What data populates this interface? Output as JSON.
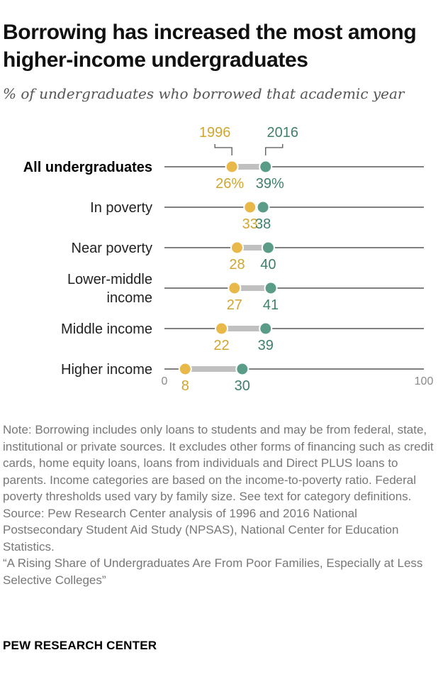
{
  "title": "Borrowing has increased the most among higher-income undergraduates",
  "subtitle": "% of undergraduates who borrowed that academic year",
  "colors": {
    "y1996": "#e8b84b",
    "y2016": "#5a9c87",
    "y1996_text": "#d0a530",
    "y2016_text": "#3f7f6d",
    "line": "#808080",
    "connector": "#c0c0c0"
  },
  "chart_data": {
    "type": "dot",
    "xlim": [
      0,
      100
    ],
    "ticks": [
      {
        "value": 0,
        "label": "0"
      },
      {
        "value": 100,
        "label": "100"
      }
    ],
    "legend": [
      {
        "year": "1996",
        "label": "1996"
      },
      {
        "year": "2016",
        "label": "2016"
      }
    ],
    "categories": [
      {
        "label": [
          "All undergraduates"
        ],
        "bold": true,
        "v1996": 26,
        "v2016": 39,
        "label1996": "26%",
        "label2016": "39%"
      },
      {
        "label": [
          "In poverty"
        ],
        "bold": false,
        "v1996": 33,
        "v2016": 38,
        "label1996": "33",
        "label2016": "38"
      },
      {
        "label": [
          "Near poverty"
        ],
        "bold": false,
        "v1996": 28,
        "v2016": 40,
        "label1996": "28",
        "label2016": "40"
      },
      {
        "label": [
          "Lower-middle",
          "income"
        ],
        "bold": false,
        "v1996": 27,
        "v2016": 41,
        "label1996": "27",
        "label2016": "41"
      },
      {
        "label": [
          "Middle income"
        ],
        "bold": false,
        "v1996": 22,
        "v2016": 39,
        "label1996": "22",
        "label2016": "39"
      },
      {
        "label": [
          "Higher income"
        ],
        "bold": false,
        "v1996": 8,
        "v2016": 30,
        "label1996": "8",
        "label2016": "30"
      }
    ]
  },
  "notes": [
    "Note: Borrowing includes only loans to students and may be from federal, state, institutional or private sources. It excludes other forms of financing such as credit cards, home equity loans, loans from individuals and Direct PLUS loans to parents. Income categories are based on the income-to-poverty ratio. Federal poverty thresholds used vary by family size. See text for category definitions.",
    "Source: Pew Research Center analysis of 1996 and 2016 National Postsecondary Student Aid Study (NPSAS), National Center for Education Statistics.",
    "“A Rising Share of Undergraduates Are From Poor Families, Especially at Less Selective Colleges”"
  ],
  "brand": "PEW RESEARCH CENTER"
}
